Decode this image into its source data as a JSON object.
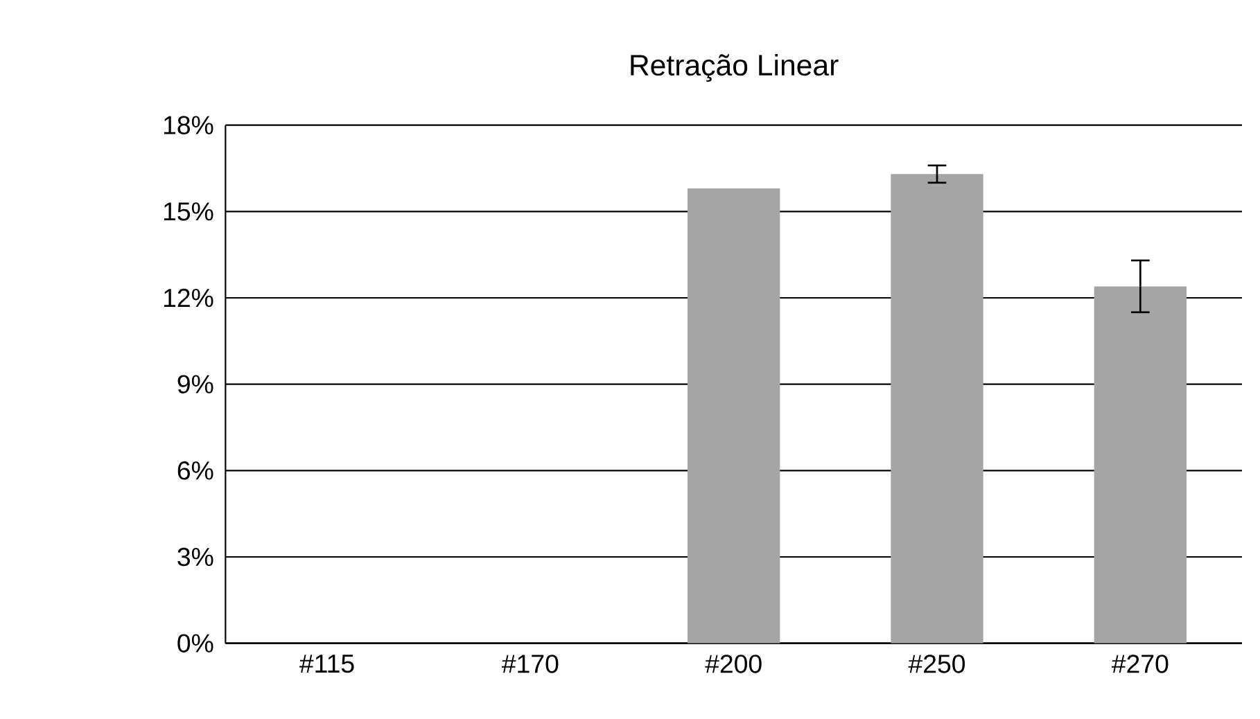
{
  "chart_data": {
    "type": "bar",
    "title": "Retração Linear",
    "categories": [
      "#115",
      "#170",
      "#200",
      "#250",
      "#270"
    ],
    "values": [
      null,
      null,
      15.8,
      16.3,
      12.4
    ],
    "errors": [
      null,
      null,
      null,
      0.3,
      0.9
    ],
    "color": "#a5a5a5",
    "ylim": [
      0,
      18
    ],
    "yticks": [
      {
        "value": 0,
        "label": "0%"
      },
      {
        "value": 3,
        "label": "3%"
      },
      {
        "value": 6,
        "label": "6%"
      },
      {
        "value": 9,
        "label": "9%"
      },
      {
        "value": 12,
        "label": "12%"
      },
      {
        "value": 15,
        "label": "15%"
      },
      {
        "value": 18,
        "label": "18%"
      }
    ],
    "grid": "y"
  }
}
